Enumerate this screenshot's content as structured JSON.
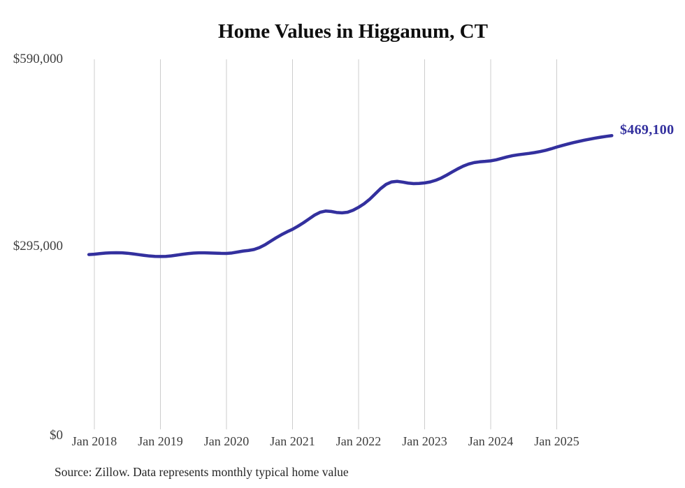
{
  "page": {
    "source_note": "Source: Zillow. Data represents monthly typical home value"
  },
  "chart_data": {
    "type": "line",
    "title": "Home Values in Higganum, CT",
    "series_name": "Monthly typical home value",
    "start_month": "2017-12",
    "end_month": "2025-11",
    "end_value": 469100,
    "end_value_label": "$469,100",
    "x_tick_labels": [
      "Jan 2018",
      "Jan 2019",
      "Jan 2020",
      "Jan 2021",
      "Jan 2022",
      "Jan 2023",
      "Jan 2024",
      "Jan 2025"
    ],
    "y_tick_labels": [
      "$0",
      "$295,000",
      "$590,000"
    ],
    "y_ticks": [
      0,
      295000,
      590000
    ],
    "ylim": [
      0,
      590000
    ],
    "grid": "vertical-yearly",
    "legend": "none",
    "line_color": "#33309e",
    "grid_color": "#cccccc",
    "axis_text_color": "#3e3e3e",
    "values": [
      280500,
      281000,
      282000,
      282800,
      283200,
      283400,
      283200,
      282600,
      281600,
      280400,
      279200,
      278200,
      277600,
      277400,
      277600,
      278400,
      279600,
      280900,
      282000,
      282800,
      283200,
      283200,
      283000,
      282700,
      282400,
      282300,
      283000,
      284500,
      286000,
      287000,
      288500,
      291500,
      296000,
      301500,
      307000,
      312000,
      316500,
      320500,
      325500,
      331000,
      337000,
      343000,
      347500,
      349500,
      348800,
      347200,
      346600,
      347600,
      350800,
      355400,
      361000,
      368000,
      376500,
      385000,
      391800,
      395600,
      396600,
      395400,
      393800,
      393000,
      393200,
      394100,
      395600,
      398200,
      401800,
      406400,
      411400,
      416300,
      420600,
      424000,
      426300,
      427500,
      428200,
      429100,
      430700,
      433000,
      435400,
      437300,
      438700,
      439800,
      440900,
      442200,
      443800,
      445800,
      448200,
      450900,
      453400,
      455700,
      457900,
      459900,
      461800,
      463500,
      465100,
      466600,
      467900,
      469100
    ]
  }
}
